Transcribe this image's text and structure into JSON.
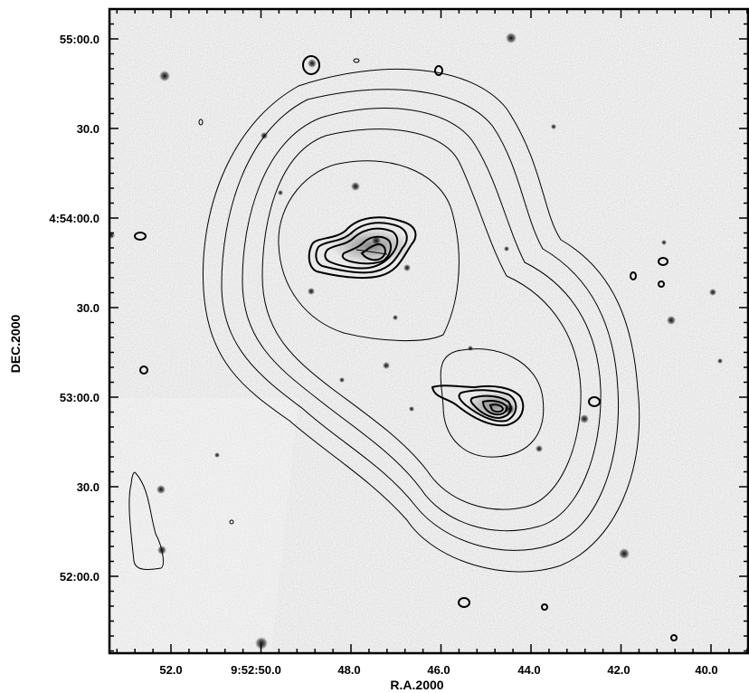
{
  "figure": {
    "x_axis": {
      "label": "R.A.2000",
      "tick_labels": [
        "52.0",
        "9:52:50.0",
        "48.0",
        "46.0",
        "44.0",
        "42.0",
        "40.0"
      ]
    },
    "y_axis": {
      "label": "DEC.2000",
      "tick_labels": [
        "55:00.0",
        "30.0",
        "4:54:00.0",
        "30.0",
        "53:00.0",
        "30.0",
        "52:00.0"
      ]
    },
    "background": "optical grayscale image with radio contour overlay",
    "colors": {
      "background_gray": "#c9c9c9",
      "contour": "#000000",
      "star": "#111111"
    }
  }
}
